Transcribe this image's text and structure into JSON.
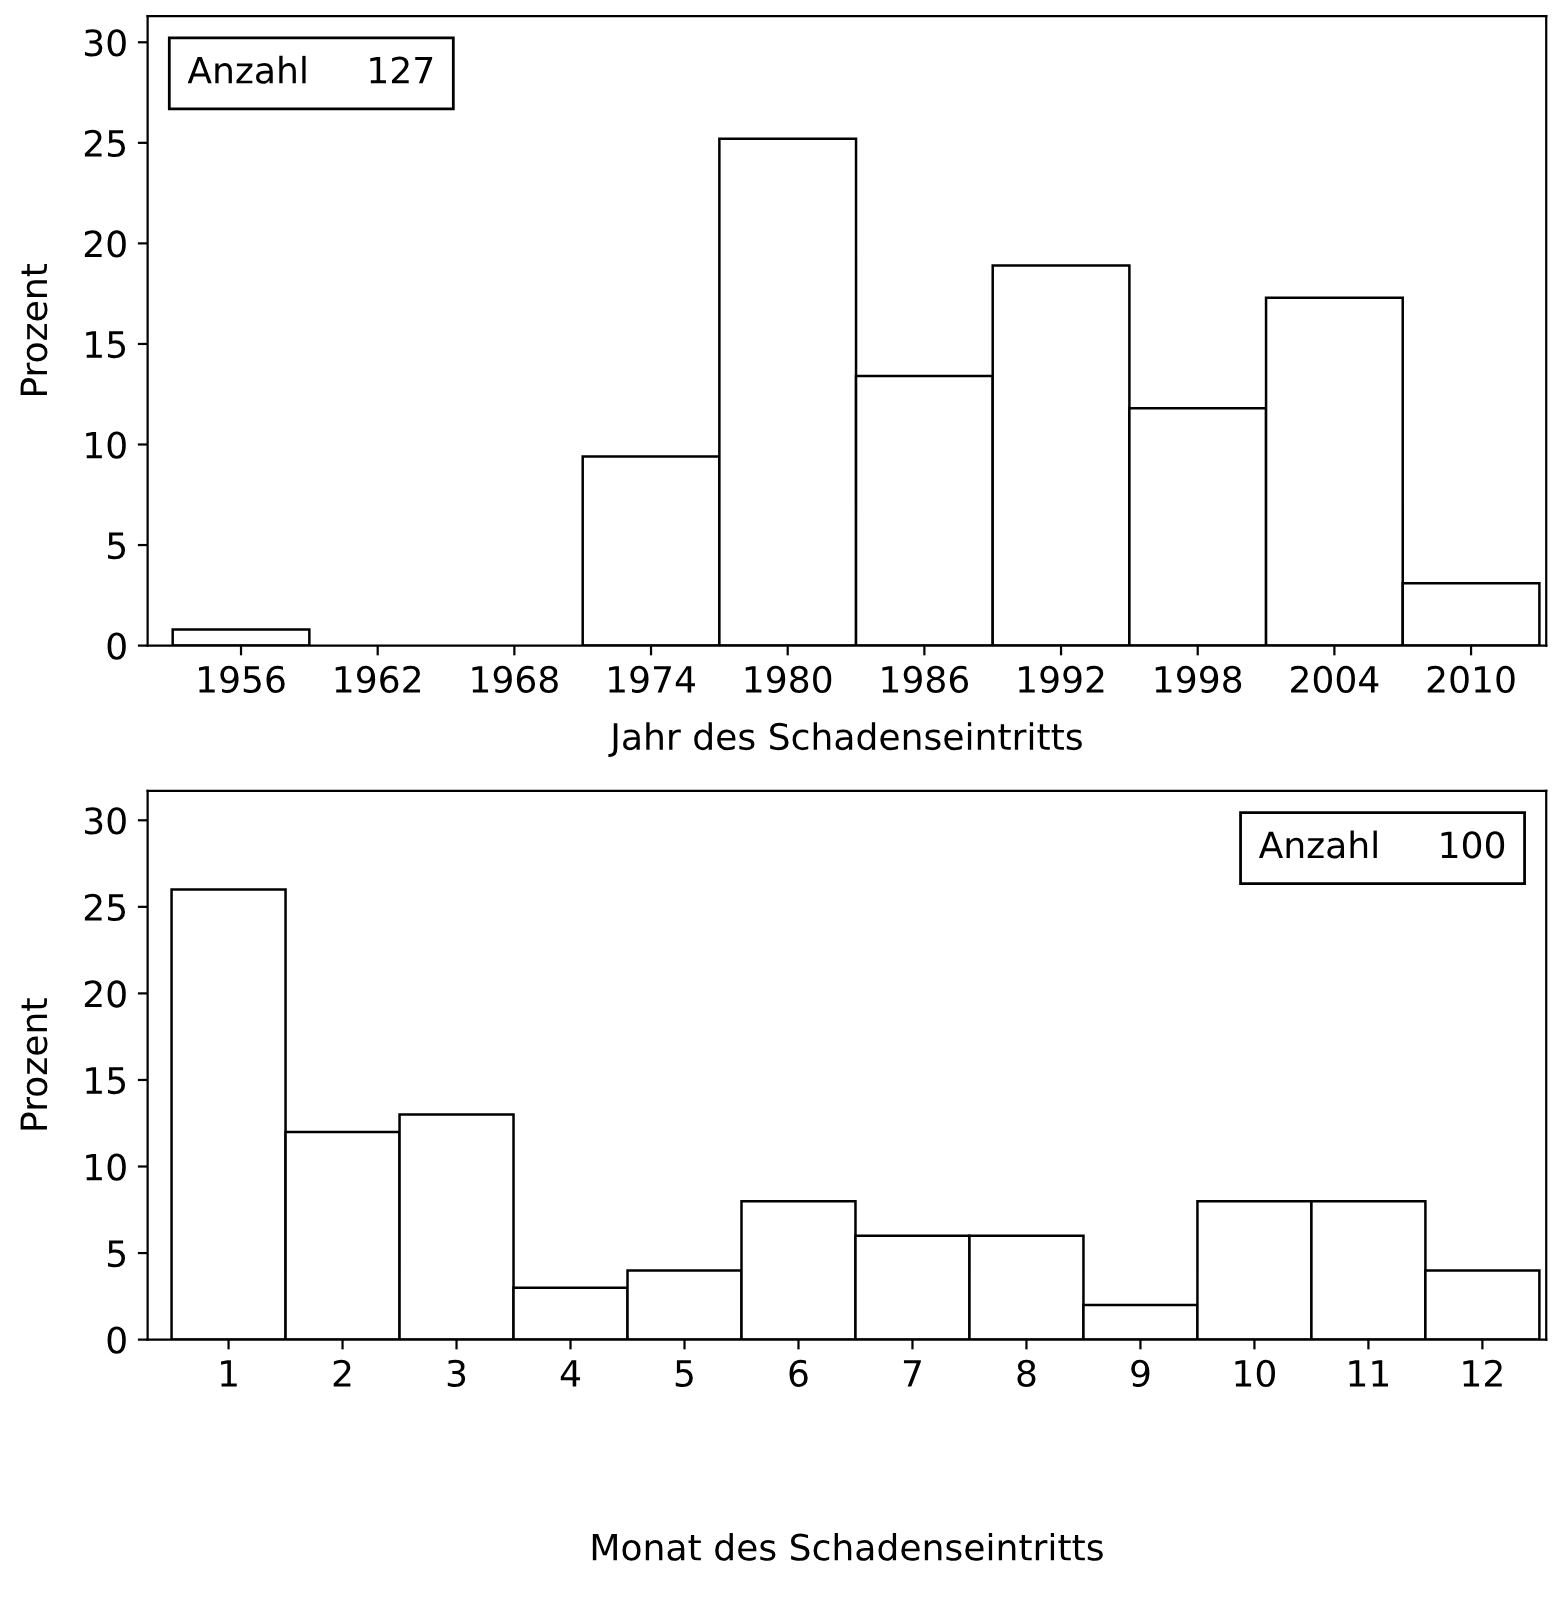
{
  "chart_data": [
    {
      "type": "histogram",
      "bins": [
        1953,
        1959,
        1965,
        1971,
        1977,
        1983,
        1989,
        1995,
        2001,
        2007,
        2013
      ],
      "values": [
        0.8,
        0,
        0,
        9.4,
        25.2,
        13.4,
        18.9,
        11.8,
        17.3,
        3.1
      ],
      "color": "#ffffff",
      "xlabel": "Jahr des Schadenseintritts",
      "ylabel": "Prozent",
      "xlim": [
        1951.9,
        2013.3
      ],
      "xticks": [
        1956,
        1962,
        1968,
        1974,
        1980,
        1986,
        1992,
        1998,
        2004,
        2010
      ],
      "ylim": [
        0,
        31.3
      ],
      "yticks": [
        0,
        5,
        10,
        15,
        20,
        25,
        30
      ],
      "annotations": [
        "Anzahl     127"
      ],
      "grid": false
    },
    {
      "type": "histogram",
      "bins": [
        0.5,
        1.5,
        2.5,
        3.5,
        4.5,
        5.5,
        6.5,
        7.5,
        8.5,
        9.5,
        10.5,
        11.5,
        12.5
      ],
      "values": [
        26,
        12,
        13,
        3,
        4,
        8,
        6,
        6,
        2,
        8,
        8,
        4
      ],
      "color": "#ffffff",
      "xlabel": "Monat des Schadenseintritts",
      "ylabel": "Prozent",
      "xlim": [
        0.29,
        12.56
      ],
      "xticks": [
        1,
        2,
        3,
        4,
        5,
        6,
        7,
        8,
        9,
        10,
        11,
        12
      ],
      "ylim": [
        0,
        31.7
      ],
      "yticks": [
        0,
        5,
        10,
        15,
        20,
        25,
        30
      ],
      "annotations": [
        "Anzahl     100"
      ],
      "grid": false
    }
  ]
}
